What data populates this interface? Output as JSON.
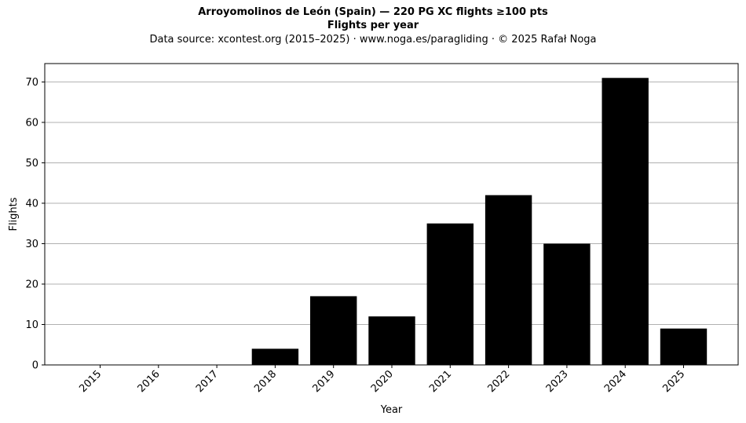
{
  "chart_data": {
    "type": "bar",
    "title": "Arroyomolinos de León (Spain)  —  220 PG XC flights ≥100 pts",
    "subtitle": "Flights per year",
    "source_note": "Data source: xcontest.org (2015–2025)  ·  www.noga.es/paragliding  ·  © 2025 Rafał Noga",
    "xlabel": "Year",
    "ylabel": "Flights",
    "categories": [
      "2015",
      "2016",
      "2017",
      "2018",
      "2019",
      "2020",
      "2021",
      "2022",
      "2023",
      "2024",
      "2025"
    ],
    "values": [
      0,
      0,
      0,
      4,
      17,
      12,
      35,
      42,
      30,
      71,
      9
    ],
    "ylim": [
      0,
      74.55
    ],
    "yticks": [
      0,
      10,
      20,
      30,
      40,
      50,
      60,
      70
    ],
    "grid": "y",
    "bar_color": "#000000",
    "grid_color": "#b0b0b0"
  }
}
